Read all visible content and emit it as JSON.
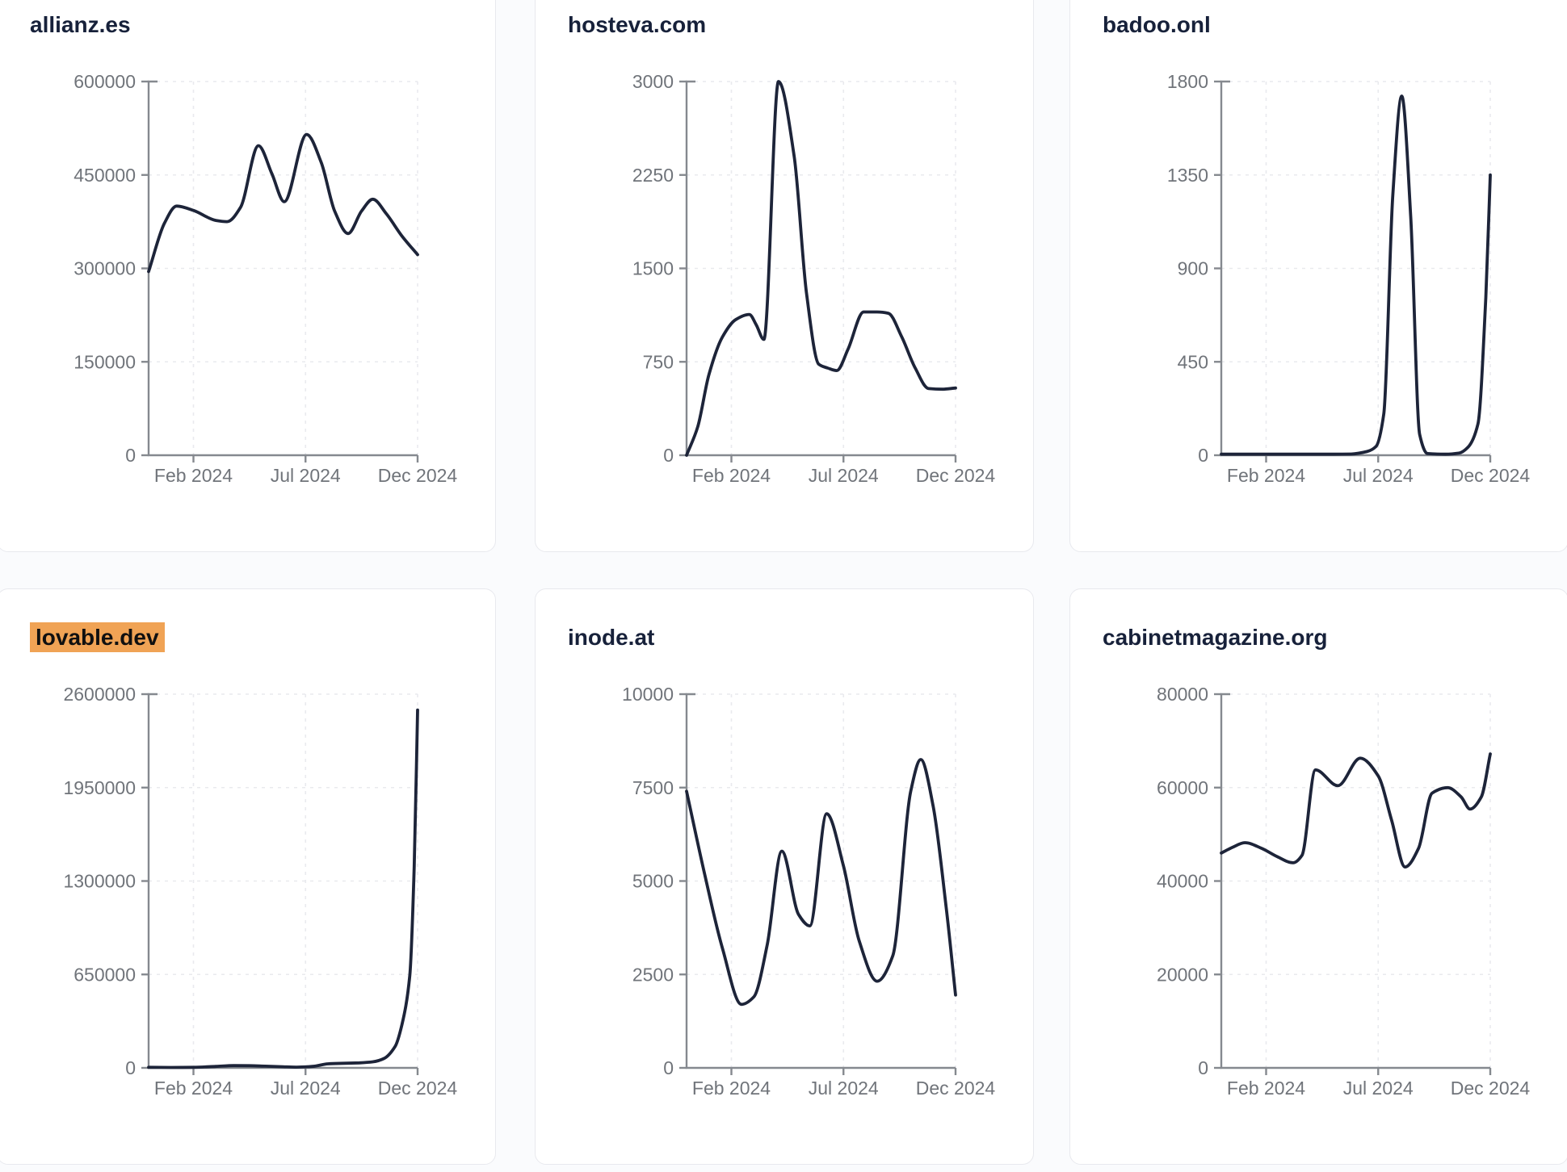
{
  "page": {
    "background": "#fafbfd",
    "card_background": "#ffffff",
    "card_border": "#e8e9ee"
  },
  "colors": {
    "line": "#1d2439",
    "title": "#17213a",
    "tick_label": "#70747a",
    "axis": "#85898f",
    "grid": "#e9eaee",
    "highlight": "#f0a355"
  },
  "x_axis": {
    "tick_labels": [
      "Feb 2024",
      "Jul 2024",
      "Dec 2024"
    ],
    "tick_positions": [
      2,
      7,
      12
    ],
    "domain_note": "x in months, 0 = Dec 2023, 12 = Dec 2024",
    "domain": [
      0,
      12
    ]
  },
  "chart_data": [
    {
      "type": "line",
      "title": "allianz.es",
      "highlighted": false,
      "ylim": [
        0,
        600000
      ],
      "y_ticks": [
        0,
        150000,
        300000,
        450000,
        600000
      ],
      "x_tick_labels": [
        "Feb 2024",
        "Jul 2024",
        "Dec 2024"
      ],
      "x": [
        0,
        0.7,
        1.25,
        2,
        3,
        3.5,
        4.1,
        4.9,
        5.5,
        6.05,
        7.05,
        7.7,
        8.3,
        8.9,
        9.5,
        10,
        10.6,
        11.3,
        12
      ],
      "values": [
        295000,
        372000,
        400000,
        393000,
        377000,
        375000,
        398000,
        497000,
        452000,
        407000,
        515000,
        470000,
        392000,
        356000,
        392000,
        411000,
        388000,
        352000,
        322000
      ]
    },
    {
      "type": "line",
      "title": "hosteva.com",
      "highlighted": false,
      "ylim": [
        0,
        3000
      ],
      "y_ticks": [
        0,
        750,
        1500,
        2250,
        3000
      ],
      "x_tick_labels": [
        "Feb 2024",
        "Jul 2024",
        "Dec 2024"
      ],
      "x": [
        0,
        0.5,
        1,
        1.6,
        2.2,
        2.8,
        3.1,
        3.45,
        4.1,
        4.8,
        5.35,
        5.9,
        6.3,
        6.7,
        7.2,
        7.9,
        8.5,
        9.0,
        9.6,
        10.2,
        10.8,
        11.4,
        12
      ],
      "values": [
        0,
        230,
        650,
        950,
        1090,
        1130,
        1050,
        930,
        3000,
        2400,
        1300,
        730,
        700,
        680,
        850,
        1150,
        1150,
        1140,
        950,
        700,
        535,
        530,
        540
      ]
    },
    {
      "type": "line",
      "title": "badoo.onl",
      "highlighted": false,
      "ylim": [
        0,
        1800
      ],
      "y_ticks": [
        0,
        450,
        900,
        1350,
        1800
      ],
      "x_tick_labels": [
        "Feb 2024",
        "Jul 2024",
        "Dec 2024"
      ],
      "x": [
        0,
        1,
        2,
        3,
        4,
        5,
        5.8,
        6.5,
        6.9,
        7.25,
        7.65,
        8.05,
        8.45,
        8.85,
        9.2,
        10,
        10.6,
        11.0,
        11.45,
        11.8,
        12
      ],
      "values": [
        5,
        5,
        5,
        5,
        5,
        5,
        6,
        18,
        42,
        200,
        1250,
        1730,
        1150,
        100,
        8,
        5,
        10,
        38,
        150,
        760,
        1350
      ]
    },
    {
      "type": "line",
      "title": "lovable.dev",
      "highlighted": true,
      "ylim": [
        0,
        2600000
      ],
      "y_ticks": [
        0,
        650000,
        1300000,
        1950000,
        2600000
      ],
      "x_tick_labels": [
        "Feb 2024",
        "Jul 2024",
        "Dec 2024"
      ],
      "x": [
        0,
        1,
        2,
        3,
        3.8,
        4.5,
        5.2,
        6,
        6.6,
        7.3,
        8,
        8.7,
        9.4,
        10,
        10.5,
        11,
        11.3,
        11.65,
        11.85,
        12
      ],
      "values": [
        4000,
        3000,
        4000,
        10000,
        16000,
        15000,
        12000,
        8000,
        5000,
        10000,
        28000,
        32000,
        35000,
        42000,
        65000,
        150000,
        300000,
        640000,
        1400000,
        2490000
      ]
    },
    {
      "type": "line",
      "title": "inode.at",
      "highlighted": false,
      "ylim": [
        0,
        10000
      ],
      "y_ticks": [
        0,
        2500,
        5000,
        7500,
        10000
      ],
      "x_tick_labels": [
        "Feb 2024",
        "Jul 2024",
        "Dec 2024"
      ],
      "x": [
        0,
        0.8,
        1.6,
        2.45,
        3,
        3.6,
        4.25,
        5.0,
        5.5,
        6.25,
        7,
        7.7,
        8.5,
        9.2,
        10,
        10.45,
        11,
        11.6,
        12
      ],
      "values": [
        7400,
        5200,
        3200,
        1700,
        1900,
        3300,
        5800,
        4100,
        3800,
        6800,
        5400,
        3400,
        2320,
        3000,
        7400,
        8250,
        7000,
        4200,
        1950
      ]
    },
    {
      "type": "line",
      "title": "cabinetmagazine.org",
      "highlighted": false,
      "ylim": [
        0,
        80000
      ],
      "y_ticks": [
        0,
        20000,
        40000,
        60000,
        80000
      ],
      "x_tick_labels": [
        "Feb 2024",
        "Jul 2024",
        "Dec 2024"
      ],
      "x": [
        0,
        0.5,
        1.05,
        1.8,
        2.5,
        3.2,
        3.6,
        4.2,
        5.2,
        6.2,
        7,
        7.6,
        8.2,
        8.8,
        9.4,
        10.1,
        10.7,
        11.1,
        11.6,
        12
      ],
      "values": [
        46000,
        47200,
        48200,
        47000,
        45200,
        43900,
        45500,
        63800,
        60400,
        66300,
        62500,
        53000,
        43000,
        47000,
        58800,
        60000,
        58000,
        55400,
        58000,
        67200
      ]
    }
  ]
}
